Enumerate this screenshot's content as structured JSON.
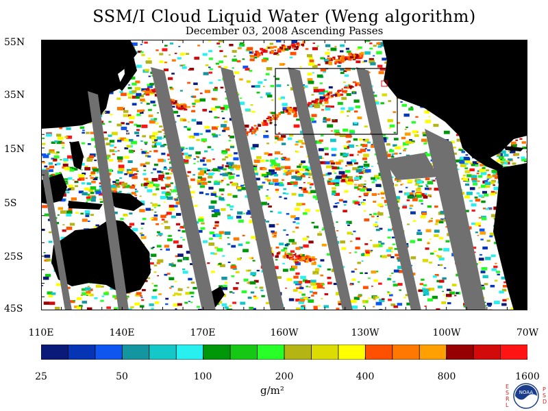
{
  "title": "SSM/I Cloud Liquid Water (Weng algorithm)",
  "subtitle": "December 03, 2008  Ascending Passes",
  "lat_labels": [
    "55N",
    "35N",
    "15N",
    "5S",
    "25S",
    "45S"
  ],
  "lon_labels": [
    "110E",
    "140E",
    "170E",
    "160W",
    "130W",
    "100W",
    "70W"
  ],
  "colorbar": {
    "colors": [
      "#0a1a78",
      "#0535b4",
      "#0f56f0",
      "#1496a0",
      "#14c8c8",
      "#28f0f0",
      "#00960a",
      "#14c814",
      "#28ff28",
      "#b4b414",
      "#dcdc00",
      "#ffff00",
      "#ff5000",
      "#ff7800",
      "#ffa000",
      "#960000",
      "#d20a0a",
      "#ff1414"
    ],
    "labels": [
      "25",
      "50",
      "100",
      "200",
      "400",
      "800",
      "1600"
    ],
    "units": "g/m²"
  },
  "colors": {
    "land": "#000000",
    "no_data_swath": "#707070",
    "box_outline": "#000000",
    "small_box": "#ff0000"
  },
  "logo": {
    "name": "noaa-logo",
    "text": "NOAA",
    "left_letters": "ESRL",
    "right_letters": "PSD"
  }
}
